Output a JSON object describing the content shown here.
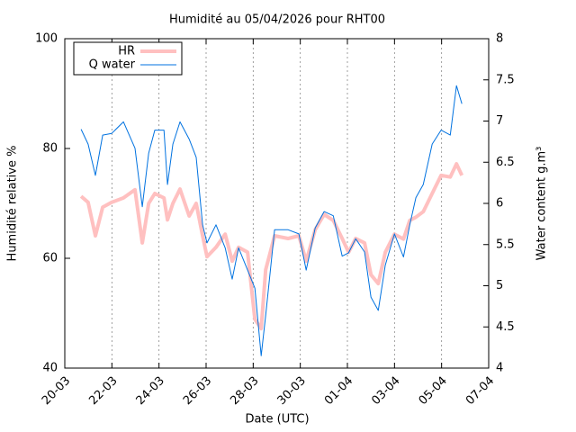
{
  "chart_data": {
    "type": "line",
    "title": "Humidité au 05/04/2026 pour RHT00",
    "xlabel": "Date (UTC)",
    "ylabel": "Humidité relative %",
    "y2label": "Water content g.m³",
    "x": [
      0.69,
      0.99,
      1.3,
      1.61,
      1.99,
      2.49,
      2.98,
      3.29,
      3.56,
      3.82,
      4.21,
      4.36,
      4.59,
      4.89,
      5.28,
      5.58,
      5.85,
      6.04,
      6.42,
      6.81,
      7.11,
      7.38,
      7.76,
      8.07,
      8.34,
      8.53,
      8.91,
      9.48,
      9.94,
      10.25,
      10.63,
      11.01,
      11.4,
      11.78,
      12.05,
      12.35,
      12.73,
      13.0,
      13.31,
      13.61,
      14.0,
      14.38,
      14.65,
      14.91,
      15.22,
      15.6,
      15.98,
      16.37,
      16.63,
      16.86
    ],
    "series": [
      {
        "name": "HR",
        "color": "#ffc0c0",
        "width": 4,
        "values": [
          71.3,
          70.2,
          64.1,
          69.3,
          70.2,
          71,
          72.5,
          62.8,
          70,
          71.8,
          71,
          67,
          70,
          72.6,
          67.7,
          70,
          64.1,
          60.3,
          62,
          64.4,
          59.5,
          62,
          61.1,
          48.9,
          47.2,
          57.9,
          64.1,
          63.6,
          64.1,
          59.5,
          65.2,
          68,
          66.9,
          63.6,
          61.1,
          63.6,
          62.8,
          57,
          55.4,
          61.1,
          64.4,
          63.5,
          66.9,
          67.5,
          68.5,
          71.8,
          75.1,
          74.8,
          77.2,
          75.1
        ]
      },
      {
        "name": "Q water",
        "color": "#0072e0",
        "width": 1,
        "axis": "y2",
        "values": [
          6.9,
          6.72,
          6.34,
          6.83,
          6.85,
          6.99,
          6.67,
          5.96,
          6.61,
          6.89,
          6.89,
          6.23,
          6.72,
          6.99,
          6.78,
          6.56,
          5.74,
          5.52,
          5.74,
          5.46,
          5.08,
          5.46,
          5.19,
          4.97,
          4.15,
          4.64,
          5.68,
          5.68,
          5.63,
          5.19,
          5.7,
          5.9,
          5.85,
          5.36,
          5.4,
          5.57,
          5.41,
          4.86,
          4.7,
          5.25,
          5.63,
          5.35,
          5.74,
          6.07,
          6.23,
          6.72,
          6.89,
          6.83,
          7.43,
          7.21
        ]
      }
    ],
    "xlim": [
      0,
      18
    ],
    "xticks": [
      {
        "value": 0,
        "label": "20-03"
      },
      {
        "value": 2,
        "label": "22-03"
      },
      {
        "value": 4,
        "label": "24-03"
      },
      {
        "value": 6,
        "label": "26-03"
      },
      {
        "value": 8,
        "label": "28-03"
      },
      {
        "value": 10,
        "label": "30-03"
      },
      {
        "value": 12,
        "label": "01-04"
      },
      {
        "value": 14,
        "label": "03-04"
      },
      {
        "value": 16,
        "label": "05-04"
      },
      {
        "value": 18,
        "label": "07-04"
      }
    ],
    "ylim": [
      40,
      100
    ],
    "yticks": [
      40,
      60,
      80,
      100
    ],
    "y2lim": [
      4,
      8
    ],
    "y2ticks": [
      4,
      4.5,
      5,
      5.5,
      6,
      6.5,
      7,
      7.5,
      8
    ],
    "grid": "x",
    "legend": "top-left"
  }
}
